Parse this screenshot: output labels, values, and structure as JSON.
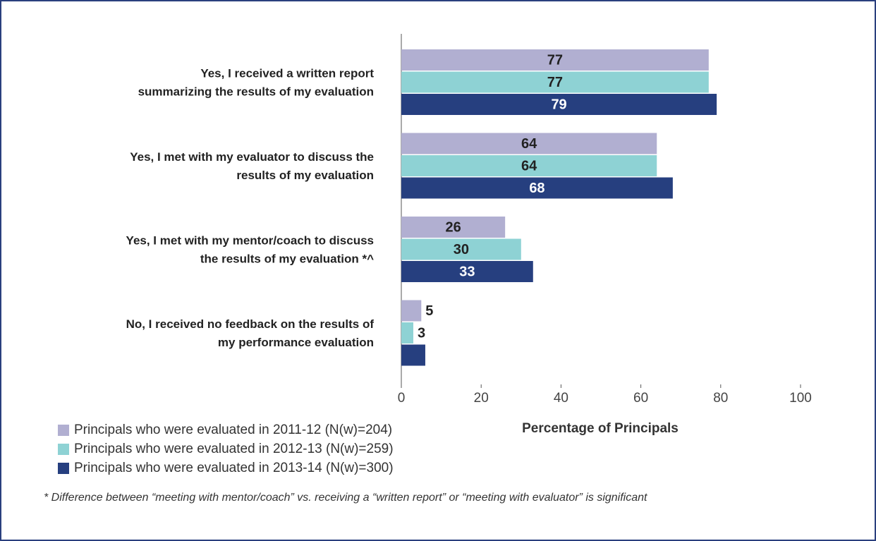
{
  "chart_data": {
    "type": "hbar",
    "categories": [
      [
        "Yes, I received a written report",
        "summarizing the results of my evaluation"
      ],
      [
        "Yes, I met with my evaluator to discuss the",
        "results of my evaluation"
      ],
      [
        "Yes, I met with my mentor/coach to discuss",
        "the results of my evaluation *^"
      ],
      [
        "No, I received no feedback on the results of",
        "my performance evaluation"
      ]
    ],
    "series": [
      {
        "name": "Principals who were evaluated in 2011-12 (N(w)=204)",
        "color": "#b1afd1",
        "values": [
          77,
          64,
          26,
          5
        ]
      },
      {
        "name": "Principals who were evaluated in 2012-13 (N(w)=259)",
        "color": "#8ed2d4",
        "values": [
          77,
          64,
          30,
          3
        ]
      },
      {
        "name": "Principals who were evaluated in 2013-14 (N(w)=300)",
        "color": "#263f7f",
        "values": [
          79,
          68,
          33,
          6
        ]
      }
    ],
    "xlabel": "Percentage of Principals",
    "xlim": [
      0,
      100
    ],
    "xticks": [
      0,
      20,
      40,
      60,
      80,
      100
    ],
    "footnote": "* Difference between “meeting with mentor/coach” vs. receiving a “written report” or “meeting with evaluator” is significant"
  }
}
